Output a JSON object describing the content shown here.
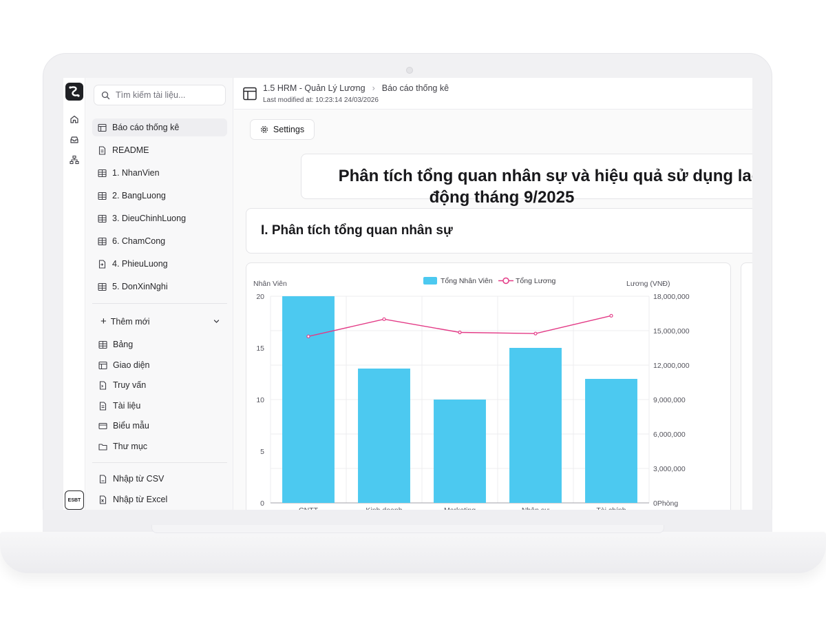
{
  "sidebar": {
    "search_placeholder": "Tìm kiếm tài liệu...",
    "items": [
      {
        "label": "Báo cáo thống kê",
        "icon": "layout-icon",
        "active": true
      },
      {
        "label": "README",
        "icon": "document-icon"
      },
      {
        "label": "1. NhanVien",
        "icon": "table-icon"
      },
      {
        "label": "2. BangLuong",
        "icon": "table-icon"
      },
      {
        "label": "3. DieuChinhLuong",
        "icon": "table-icon"
      },
      {
        "label": "6. ChamCong",
        "icon": "table-icon"
      },
      {
        "label": "4. PhieuLuong",
        "icon": "form-icon"
      },
      {
        "label": "5. DonXinNghi",
        "icon": "table-icon"
      }
    ],
    "add_new_label": "Thêm mới",
    "add_items": [
      {
        "label": "Bảng",
        "icon": "table-icon"
      },
      {
        "label": "Giao diện",
        "icon": "layout-icon"
      },
      {
        "label": "Truy vấn",
        "icon": "query-icon"
      },
      {
        "label": "Tài liệu",
        "icon": "document-icon"
      },
      {
        "label": "Biểu mẫu",
        "icon": "form-icon"
      },
      {
        "label": "Thư mục",
        "icon": "folder-icon"
      }
    ],
    "import_items": [
      {
        "label": "Nhập từ CSV",
        "icon": "csv-icon"
      },
      {
        "label": "Nhập từ Excel",
        "icon": "excel-icon"
      }
    ]
  },
  "rail": {
    "icons": [
      "home-icon",
      "inbox-icon",
      "sitemap-icon"
    ],
    "footer_logo": "ESBT"
  },
  "header": {
    "breadcrumb_root": "1.5 HRM - Quản Lý Lương",
    "breadcrumb_current": "Báo cáo thống kê",
    "modified": "Last modified at: 10:23:14 24/03/2026"
  },
  "toolbar": {
    "settings_label": "Settings"
  },
  "report": {
    "title_line1": "Phân tích tổng quan nhân sự và hiệu quả sử dụng lao",
    "title_line2": "động tháng 9/2025",
    "section_title": "I. Phân tích tổng quan nhân sự"
  },
  "chart_data": {
    "type": "bar",
    "categories": [
      "CNTT",
      "Kinh doanh",
      "Marketing",
      "Nhân sự",
      "Tài chính"
    ],
    "series": [
      {
        "name": "Tổng Nhân Viên",
        "type": "bar",
        "axis": "left",
        "color": "#4cc9f0",
        "values": [
          20,
          13,
          10,
          15,
          12
        ]
      },
      {
        "name": "Tổng Lương",
        "type": "line",
        "axis": "right",
        "color": "#e33a86",
        "values": [
          14500000,
          16000000,
          14850000,
          14750000,
          16300000
        ]
      }
    ],
    "ylabel_left": "Nhân Viên",
    "ylabel_right": "Lương (VNĐ)",
    "xlabel": "Phòng",
    "ylim_left": [
      0,
      20
    ],
    "ylim_right": [
      0,
      18000000
    ],
    "yticks_left": [
      "0",
      "5",
      "10",
      "15",
      "20"
    ],
    "yticks_right": [
      "0",
      "3,000,000",
      "6,000,000",
      "9,000,000",
      "12,000,000",
      "15,000,000",
      "18,000,000"
    ],
    "legend_position": "top",
    "grid": true
  }
}
